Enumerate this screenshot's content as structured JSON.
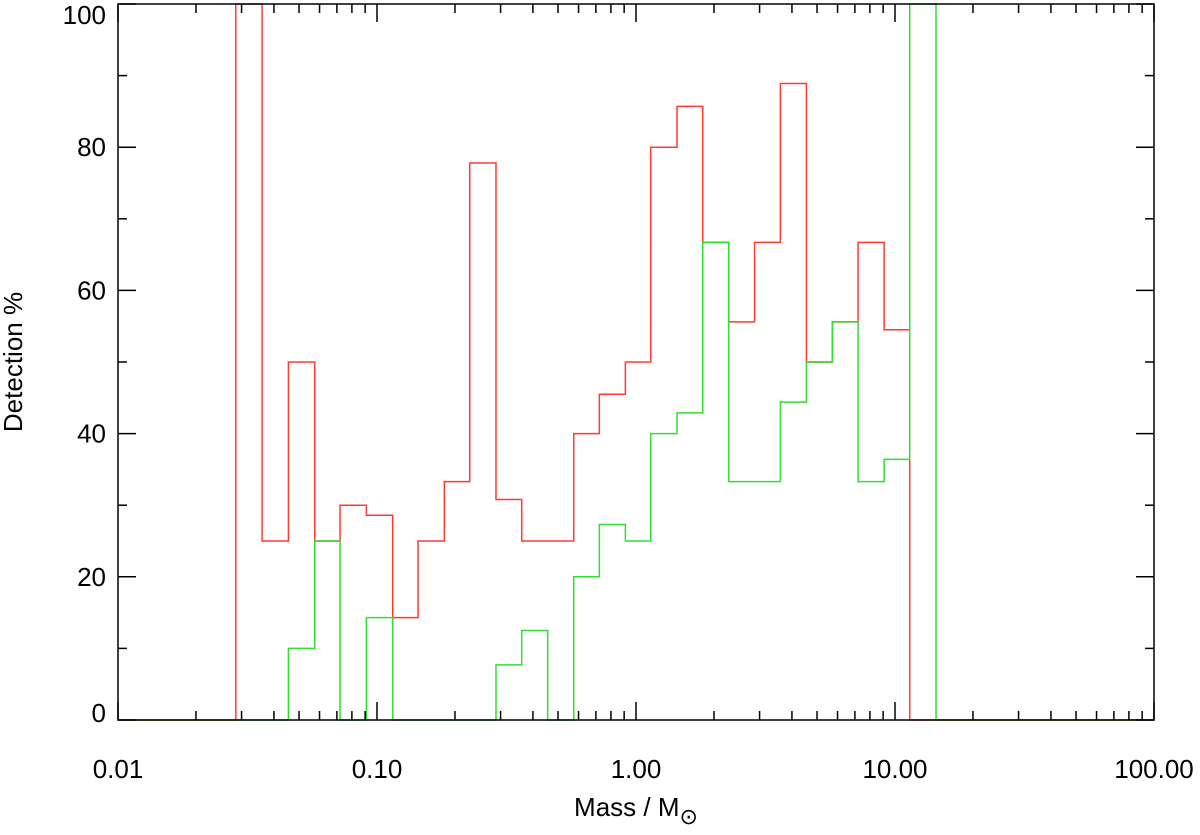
{
  "chart_data": {
    "type": "line",
    "subtype": "step-histogram",
    "title": "",
    "xlabel": "Mass / M",
    "xlabel_subscript": "⊙",
    "ylabel": "Detection %",
    "xscale": "log",
    "xlim": [
      0.01,
      100.0
    ],
    "ylim": [
      0,
      100
    ],
    "x_tick_labels": [
      "0.01",
      "0.10",
      "1.00",
      "10.00",
      "100.00"
    ],
    "y_tick_labels": [
      "0",
      "20",
      "40",
      "60",
      "80",
      "100"
    ],
    "grid": false,
    "colors": {
      "red": "#ff3b30",
      "green": "#33dd33",
      "axis": "#000000"
    },
    "series": [
      {
        "color": "red",
        "x": [
          0.01,
          0.0285,
          0.0285,
          0.036,
          0.036,
          0.0455,
          0.0455,
          0.0575,
          0.0575,
          0.072,
          0.072,
          0.091,
          0.091,
          0.115,
          0.115,
          0.144,
          0.144,
          0.182,
          0.182,
          0.228,
          0.228,
          0.288,
          0.288,
          0.362,
          0.362,
          0.456,
          0.456,
          0.575,
          0.575,
          0.722,
          0.722,
          0.91,
          0.91,
          1.14,
          1.14,
          1.44,
          1.44,
          1.81,
          1.81,
          2.28,
          2.28,
          2.87,
          2.87,
          3.61,
          3.61,
          4.55,
          4.55,
          5.73,
          5.73,
          7.2,
          7.2,
          9.08,
          9.08,
          11.4,
          11.4,
          100.0
        ],
        "y": [
          0,
          0,
          100,
          100,
          25,
          25,
          50,
          50,
          25,
          25,
          30,
          30,
          28.6,
          28.6,
          14.3,
          14.3,
          25,
          25,
          33.3,
          33.3,
          77.8,
          77.8,
          30.8,
          30.8,
          25,
          25,
          25,
          25,
          40,
          40,
          45.5,
          45.5,
          50,
          50,
          80,
          80,
          85.7,
          85.7,
          66.7,
          66.7,
          55.6,
          55.6,
          66.7,
          66.7,
          88.9,
          88.9,
          50,
          50,
          55.6,
          55.6,
          66.7,
          66.7,
          54.5,
          54.5,
          0,
          0
        ]
      },
      {
        "color": "green",
        "x": [
          0.01,
          0.0455,
          0.0455,
          0.0575,
          0.0575,
          0.072,
          0.072,
          0.091,
          0.091,
          0.115,
          0.115,
          0.288,
          0.288,
          0.362,
          0.362,
          0.456,
          0.456,
          0.575,
          0.575,
          0.722,
          0.722,
          0.91,
          0.91,
          1.14,
          1.14,
          1.44,
          1.44,
          1.81,
          1.81,
          2.28,
          2.28,
          3.61,
          3.61,
          4.55,
          4.55,
          5.73,
          5.73,
          7.2,
          7.2,
          9.08,
          9.08,
          11.4,
          11.4,
          14.4,
          14.4,
          100.0
        ],
        "y": [
          0,
          0,
          10,
          10,
          25,
          25,
          0,
          0,
          14.3,
          14.3,
          0,
          0,
          7.7,
          7.7,
          12.5,
          12.5,
          0,
          0,
          20,
          20,
          27.3,
          27.3,
          25,
          25,
          40,
          40,
          42.9,
          42.9,
          66.7,
          66.7,
          33.3,
          33.3,
          44.4,
          44.4,
          50,
          50,
          55.6,
          55.6,
          33.3,
          33.3,
          36.4,
          36.4,
          100,
          100,
          0,
          0
        ]
      }
    ]
  }
}
